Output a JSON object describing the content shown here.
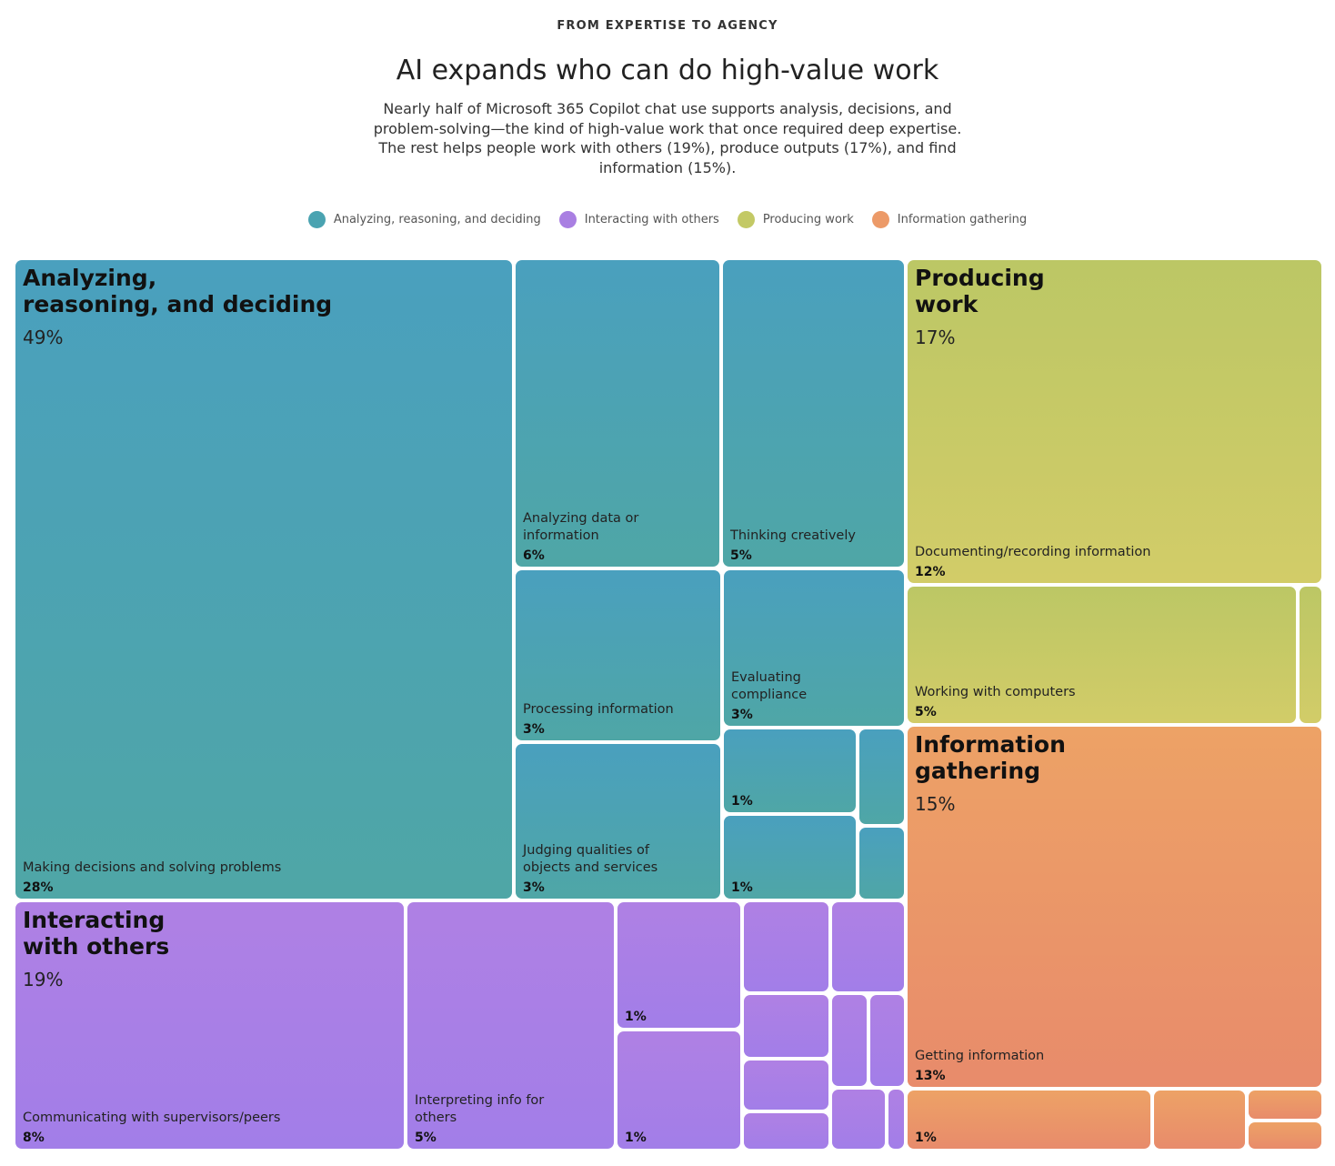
{
  "header": {
    "eyebrow": "FROM EXPERTISE TO AGENCY",
    "title": "AI expands who can do high-value work",
    "subtitle": "Nearly half of Microsoft 365 Copilot chat use supports analysis, decisions, and problem-solving—the kind of high-value work that once required deep expertise. The rest helps people work with others (19%), produce outputs (17%), and find information (15%)."
  },
  "legend": [
    {
      "label": "Analyzing, reasoning, and deciding",
      "color": "#4aa3b1"
    },
    {
      "label": "Interacting with others",
      "color": "#a97fe2"
    },
    {
      "label": "Producing work",
      "color": "#c3c965"
    },
    {
      "label": "Information gathering",
      "color": "#ec9a68"
    }
  ],
  "chart_data": {
    "type": "treemap",
    "categories": [
      {
        "name": "Analyzing,\nreasoning, and deciding",
        "value_label": "49%",
        "value": 49,
        "color_top": "#4aa0be",
        "color_bottom": "#4fa6a6",
        "children": [
          {
            "label": "Making decisions and solving problems",
            "value_label": "28%",
            "value": 28
          },
          {
            "label": "Analyzing data or\ninformation",
            "value_label": "6%",
            "value": 6
          },
          {
            "label": "Thinking creatively",
            "value_label": "5%",
            "value": 5
          },
          {
            "label": "Processing information",
            "value_label": "3%",
            "value": 3
          },
          {
            "label": "Evaluating\ncompliance",
            "value_label": "3%",
            "value": 3
          },
          {
            "label": "Judging qualities of\nobjects and services",
            "value_label": "3%",
            "value": 3
          },
          {
            "label": "",
            "value_label": "1%",
            "value": 1
          },
          {
            "label": "",
            "value_label": "1%",
            "value": 1
          },
          {
            "label": "",
            "value_label": "",
            "value": null
          },
          {
            "label": "",
            "value_label": "",
            "value": null
          }
        ]
      },
      {
        "name": "Interacting\nwith others",
        "value_label": "19%",
        "value": 19,
        "color_top": "#af80e4",
        "color_bottom": "#a27ee8",
        "children": [
          {
            "label": "Communicating with supervisors/peers",
            "value_label": "8%",
            "value": 8
          },
          {
            "label": "Interpreting info for\nothers",
            "value_label": "5%",
            "value": 5
          },
          {
            "label": "",
            "value_label": "1%",
            "value": 1
          },
          {
            "label": "",
            "value_label": "1%",
            "value": 1
          },
          {
            "label": "",
            "value_label": "",
            "value": null
          },
          {
            "label": "",
            "value_label": "",
            "value": null
          },
          {
            "label": "",
            "value_label": "",
            "value": null
          },
          {
            "label": "",
            "value_label": "",
            "value": null
          },
          {
            "label": "",
            "value_label": "",
            "value": null
          },
          {
            "label": "",
            "value_label": "",
            "value": null
          },
          {
            "label": "",
            "value_label": "",
            "value": null
          },
          {
            "label": "",
            "value_label": "",
            "value": null
          },
          {
            "label": "",
            "value_label": "",
            "value": null
          }
        ]
      },
      {
        "name": "Producing\nwork",
        "value_label": "17%",
        "value": 17,
        "color_top": "#bcc765",
        "color_bottom": "#d2cc68",
        "children": [
          {
            "label": "Documenting/recording information",
            "value_label": "12%",
            "value": 12
          },
          {
            "label": "Working with computers",
            "value_label": "5%",
            "value": 5
          },
          {
            "label": "",
            "value_label": "",
            "value": null
          }
        ]
      },
      {
        "name": "Information\ngathering",
        "value_label": "15%",
        "value": 15,
        "color_top": "#eda266",
        "color_bottom": "#e88b6b",
        "children": [
          {
            "label": "Getting information",
            "value_label": "13%",
            "value": 13
          },
          {
            "label": "",
            "value_label": "1%",
            "value": 1
          },
          {
            "label": "",
            "value_label": "",
            "value": null
          },
          {
            "label": "",
            "value_label": "",
            "value": null
          },
          {
            "label": "",
            "value_label": "",
            "value": null
          }
        ]
      }
    ]
  }
}
